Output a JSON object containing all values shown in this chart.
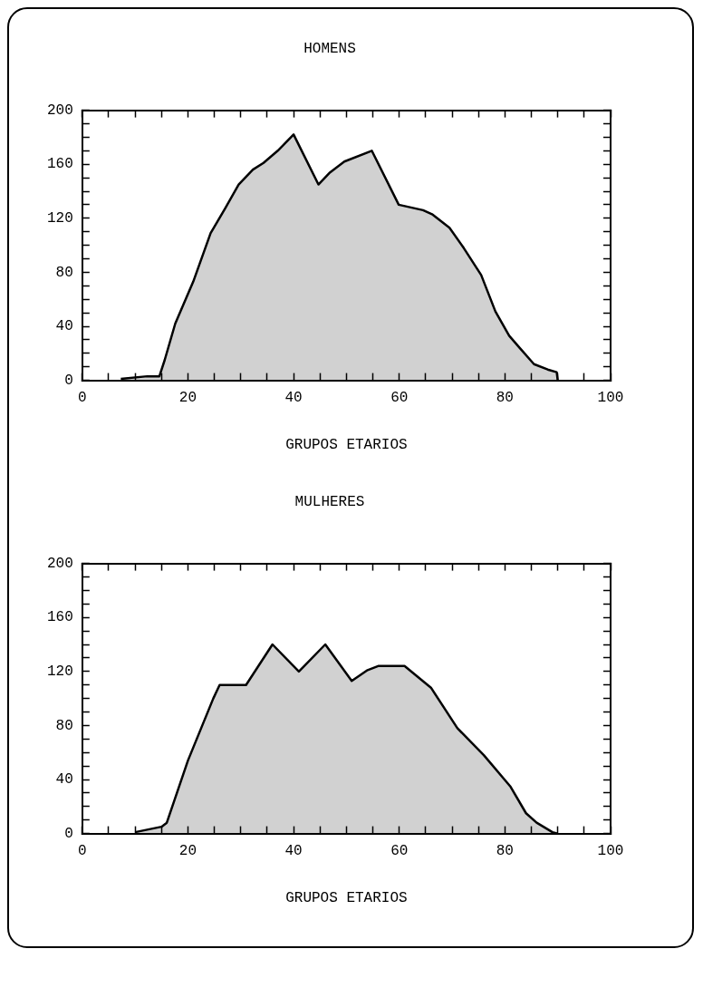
{
  "chart_data": [
    {
      "type": "area",
      "title": "HOMENS",
      "xlabel": "GRUPOS ETARIOS",
      "color": "#000000",
      "x": [
        7.3,
        12.3,
        14.6,
        15.6,
        17.6,
        21,
        24.3,
        27,
        29.6,
        32.3,
        34.3,
        37,
        40,
        44.7,
        46.9,
        49.6,
        54.8,
        59.9,
        64.5,
        66.2,
        69.5,
        72.2,
        75.5,
        78.2,
        80.8,
        82.8,
        85.5,
        88.1,
        89.8,
        90
      ],
      "values": [
        1,
        3,
        3,
        15,
        42,
        73,
        109,
        127,
        145,
        156,
        161,
        170,
        182,
        145,
        154,
        162,
        170,
        130,
        126,
        123,
        113,
        98,
        78,
        51,
        33,
        24,
        12,
        8,
        6,
        0
      ],
      "xlim": [
        0,
        100
      ],
      "ylim": [
        0,
        200
      ],
      "xticks": [
        0,
        {
          "value": 5,
          "label": null
        },
        {
          "value": 10,
          "label": null
        },
        {
          "value": 15,
          "label": null
        },
        20,
        {
          "value": 25,
          "label": null
        },
        {
          "value": 30,
          "label": null
        },
        {
          "value": 35,
          "label": null
        },
        40,
        {
          "value": 45,
          "label": null
        },
        {
          "value": 50,
          "label": null
        },
        {
          "value": 55,
          "label": null
        },
        60,
        {
          "value": 65,
          "label": null
        },
        {
          "value": 70,
          "label": null
        },
        {
          "value": 75,
          "label": null
        },
        80,
        {
          "value": 85,
          "label": null
        },
        {
          "value": 90,
          "label": null
        },
        {
          "value": 95,
          "label": null
        },
        100
      ],
      "yticks": [
        0,
        {
          "value": 10,
          "label": null
        },
        {
          "value": 20,
          "label": null
        },
        {
          "value": 30,
          "label": null
        },
        40,
        {
          "value": 50,
          "label": null
        },
        {
          "value": 60,
          "label": null
        },
        {
          "value": 70,
          "label": null
        },
        80,
        {
          "value": 90,
          "label": null
        },
        {
          "value": 100,
          "label": null
        },
        {
          "value": 110,
          "label": null
        },
        120,
        {
          "value": 130,
          "label": null
        },
        {
          "value": 140,
          "label": null
        },
        {
          "value": 150,
          "label": null
        },
        160,
        {
          "value": 170,
          "label": null
        },
        {
          "value": 180,
          "label": null
        },
        {
          "value": 190,
          "label": null
        },
        200
      ]
    },
    {
      "type": "area",
      "title": "MULHERES",
      "xlabel": "GRUPOS ETARIOS",
      "color": "#000000",
      "x": [
        10,
        15,
        16,
        20,
        24.8,
        26,
        29.5,
        31,
        36,
        41,
        46,
        51,
        54,
        56,
        61,
        66,
        71,
        76,
        81,
        84,
        86,
        89,
        90
      ],
      "values": [
        1,
        5,
        8,
        54,
        100,
        110,
        110,
        110,
        140,
        120,
        140,
        113,
        121,
        124,
        124,
        108,
        78,
        58,
        35,
        15,
        8,
        1,
        0
      ],
      "xlim": [
        0,
        100
      ],
      "ylim": [
        0,
        200
      ],
      "xticks": [
        0,
        {
          "value": 5,
          "label": null
        },
        {
          "value": 10,
          "label": null
        },
        {
          "value": 15,
          "label": null
        },
        20,
        {
          "value": 25,
          "label": null
        },
        {
          "value": 30,
          "label": null
        },
        {
          "value": 35,
          "label": null
        },
        40,
        {
          "value": 45,
          "label": null
        },
        {
          "value": 50,
          "label": null
        },
        {
          "value": 55,
          "label": null
        },
        60,
        {
          "value": 65,
          "label": null
        },
        {
          "value": 70,
          "label": null
        },
        {
          "value": 75,
          "label": null
        },
        80,
        {
          "value": 85,
          "label": null
        },
        {
          "value": 90,
          "label": null
        },
        {
          "value": 95,
          "label": null
        },
        100
      ],
      "yticks": [
        0,
        {
          "value": 10,
          "label": null
        },
        {
          "value": 20,
          "label": null
        },
        {
          "value": 30,
          "label": null
        },
        40,
        {
          "value": 50,
          "label": null
        },
        {
          "value": 60,
          "label": null
        },
        {
          "value": 70,
          "label": null
        },
        80,
        {
          "value": 90,
          "label": null
        },
        {
          "value": 100,
          "label": null
        },
        {
          "value": 110,
          "label": null
        },
        120,
        {
          "value": 130,
          "label": null
        },
        {
          "value": 140,
          "label": null
        },
        {
          "value": 150,
          "label": null
        },
        160,
        {
          "value": 170,
          "label": null
        },
        {
          "value": 180,
          "label": null
        },
        {
          "value": 190,
          "label": null
        },
        200
      ]
    }
  ]
}
